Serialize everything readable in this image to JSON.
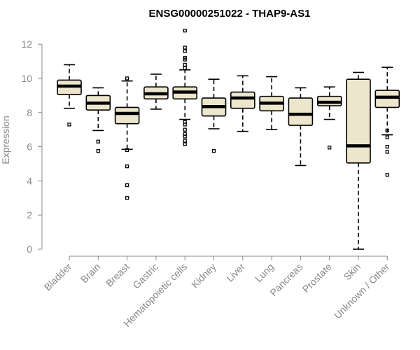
{
  "chart_data": {
    "type": "boxplot",
    "title": "ENSG00000251022 - THAP9-AS1",
    "xlabel": "",
    "ylabel": "Expression",
    "ylim": [
      0,
      12.5
    ],
    "yticks": [
      0,
      2,
      4,
      6,
      8,
      10,
      12
    ],
    "box_color": "#ede6cd",
    "axis_color": "#888888",
    "grid": false,
    "categories": [
      "Bladder",
      "Brain",
      "Breast",
      "Gastric",
      "Hematopoietic cells",
      "Kidney",
      "Liver",
      "Lung",
      "Pancreas",
      "Prostate",
      "Skin",
      "Unknown / Other"
    ],
    "boxes": [
      {
        "whisker_low": 8.25,
        "q1": 9.05,
        "median": 9.55,
        "q3": 9.9,
        "whisker_high": 10.8,
        "outliers": [
          7.3
        ]
      },
      {
        "whisker_low": 6.95,
        "q1": 8.15,
        "median": 8.55,
        "q3": 9.0,
        "whisker_high": 9.45,
        "outliers": [
          6.3,
          5.75
        ]
      },
      {
        "whisker_low": 5.85,
        "q1": 7.35,
        "median": 7.95,
        "q3": 8.3,
        "whisker_high": 9.85,
        "outliers": [
          10.0,
          5.8,
          4.85,
          3.75,
          3.0
        ]
      },
      {
        "whisker_low": 8.2,
        "q1": 8.8,
        "median": 9.1,
        "q3": 9.5,
        "whisker_high": 10.25,
        "outliers": []
      },
      {
        "whisker_low": 7.6,
        "q1": 8.8,
        "median": 9.2,
        "q3": 9.5,
        "whisker_high": 10.5,
        "outliers": [
          12.8,
          11.8,
          11.6,
          11.2,
          11.1,
          10.8,
          10.6,
          7.45,
          7.3,
          7.0,
          6.75,
          6.6,
          6.35,
          6.15
        ]
      },
      {
        "whisker_low": 7.05,
        "q1": 7.8,
        "median": 8.35,
        "q3": 8.85,
        "whisker_high": 9.95,
        "outliers": [
          5.75
        ]
      },
      {
        "whisker_low": 6.9,
        "q1": 8.25,
        "median": 8.85,
        "q3": 9.2,
        "whisker_high": 10.15,
        "outliers": []
      },
      {
        "whisker_low": 7.0,
        "q1": 8.1,
        "median": 8.55,
        "q3": 8.95,
        "whisker_high": 10.1,
        "outliers": []
      },
      {
        "whisker_low": 4.9,
        "q1": 7.25,
        "median": 7.9,
        "q3": 8.85,
        "whisker_high": 9.45,
        "outliers": []
      },
      {
        "whisker_low": 7.6,
        "q1": 8.4,
        "median": 8.6,
        "q3": 8.95,
        "whisker_high": 9.5,
        "outliers": [
          5.95
        ]
      },
      {
        "whisker_low": 0.0,
        "q1": 5.05,
        "median": 6.05,
        "q3": 9.95,
        "whisker_high": 10.35,
        "outliers": []
      },
      {
        "whisker_low": 6.7,
        "q1": 8.3,
        "median": 8.9,
        "q3": 9.3,
        "whisker_high": 10.65,
        "outliers": [
          6.95,
          6.55,
          6.0,
          5.7,
          4.35
        ]
      }
    ]
  }
}
